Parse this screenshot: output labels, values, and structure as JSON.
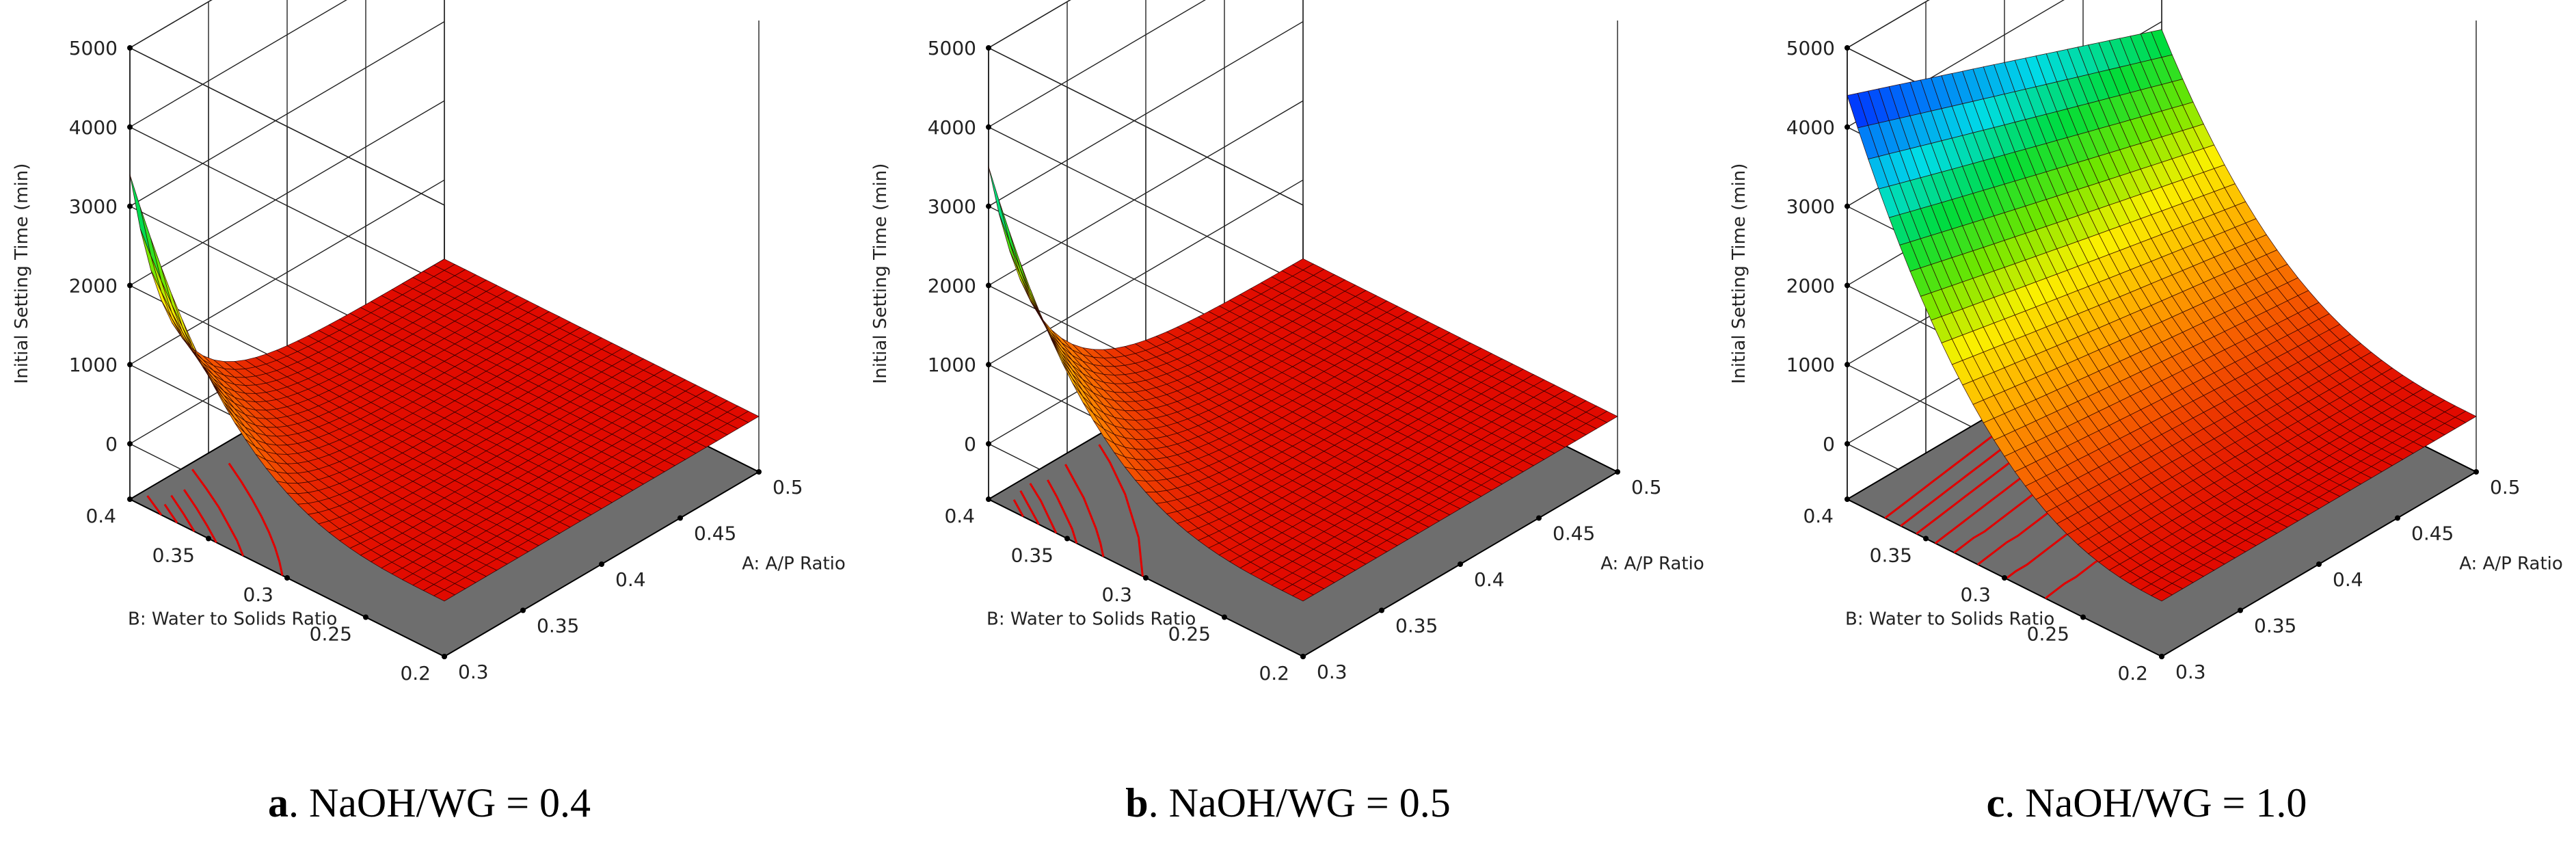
{
  "chart_data": [
    {
      "type": "surface3d",
      "panel_label": "a",
      "caption": ". NaOH/WG = 0.4",
      "zlabel": "Initial Setting Time (min)",
      "xlabel": "A: A/P Ratio",
      "ylabel": "B: Water to Solids Ratio",
      "zlim": [
        -700,
        5000
      ],
      "zticks": [
        "0",
        "1000",
        "2000",
        "3000",
        "4000",
        "5000"
      ],
      "xticks": [
        "0.3",
        "0.35",
        "0.4",
        "0.45",
        "0.5"
      ],
      "yticks": [
        "0.2",
        "0.25",
        "0.3",
        "0.35",
        "0.4"
      ],
      "corner_values": {
        "A0.3_B0.4": 3400,
        "A0.5_B0.4": 10,
        "A0.3_B0.2": 10,
        "A0.5_B0.2": 0
      },
      "surface_peak": 3400,
      "decay": 2.4
    },
    {
      "type": "surface3d",
      "panel_label": "b",
      "caption": ". NaOH/WG = 0.5",
      "zlabel": "Initial Setting Time (min)",
      "xlabel": "A: A/P Ratio",
      "ylabel": "B: Water to Solids Ratio",
      "zlim": [
        -700,
        5000
      ],
      "zticks": [
        "0",
        "1000",
        "2000",
        "3000",
        "4000",
        "5000"
      ],
      "xticks": [
        "0.3",
        "0.35",
        "0.4",
        "0.45",
        "0.5"
      ],
      "yticks": [
        "0.2",
        "0.25",
        "0.3",
        "0.35",
        "0.4"
      ],
      "corner_values": {
        "A0.3_B0.4": 3500,
        "A0.5_B0.4": 20,
        "A0.3_B0.2": 20,
        "A0.5_B0.2": 0
      },
      "surface_peak": 3500,
      "decay": 2.0
    },
    {
      "type": "surface3d",
      "panel_label": "c",
      "caption": ". NaOH/WG = 1.0",
      "zlabel": "Initial Setting Time (min)",
      "xlabel": "A: A/P Ratio",
      "ylabel": "B: Water to Solids Ratio",
      "zlim": [
        -700,
        5000
      ],
      "zticks": [
        "0",
        "1000",
        "2000",
        "3000",
        "4000",
        "5000"
      ],
      "xticks": [
        "0.3",
        "0.35",
        "0.4",
        "0.45",
        "0.5"
      ],
      "yticks": [
        "0.2",
        "0.25",
        "0.3",
        "0.35",
        "0.4"
      ],
      "corner_values": {
        "A0.3_B0.4": 4400,
        "A0.5_B0.4": 2900,
        "A0.3_B0.2": 0,
        "A0.5_B0.2": 0
      },
      "surface_peak": 4400,
      "decay": 1.0
    }
  ],
  "colors": {
    "floor": "#6e6e6e",
    "grid": "#222222",
    "contour": "#e00000",
    "mesh": "#2a0000"
  }
}
